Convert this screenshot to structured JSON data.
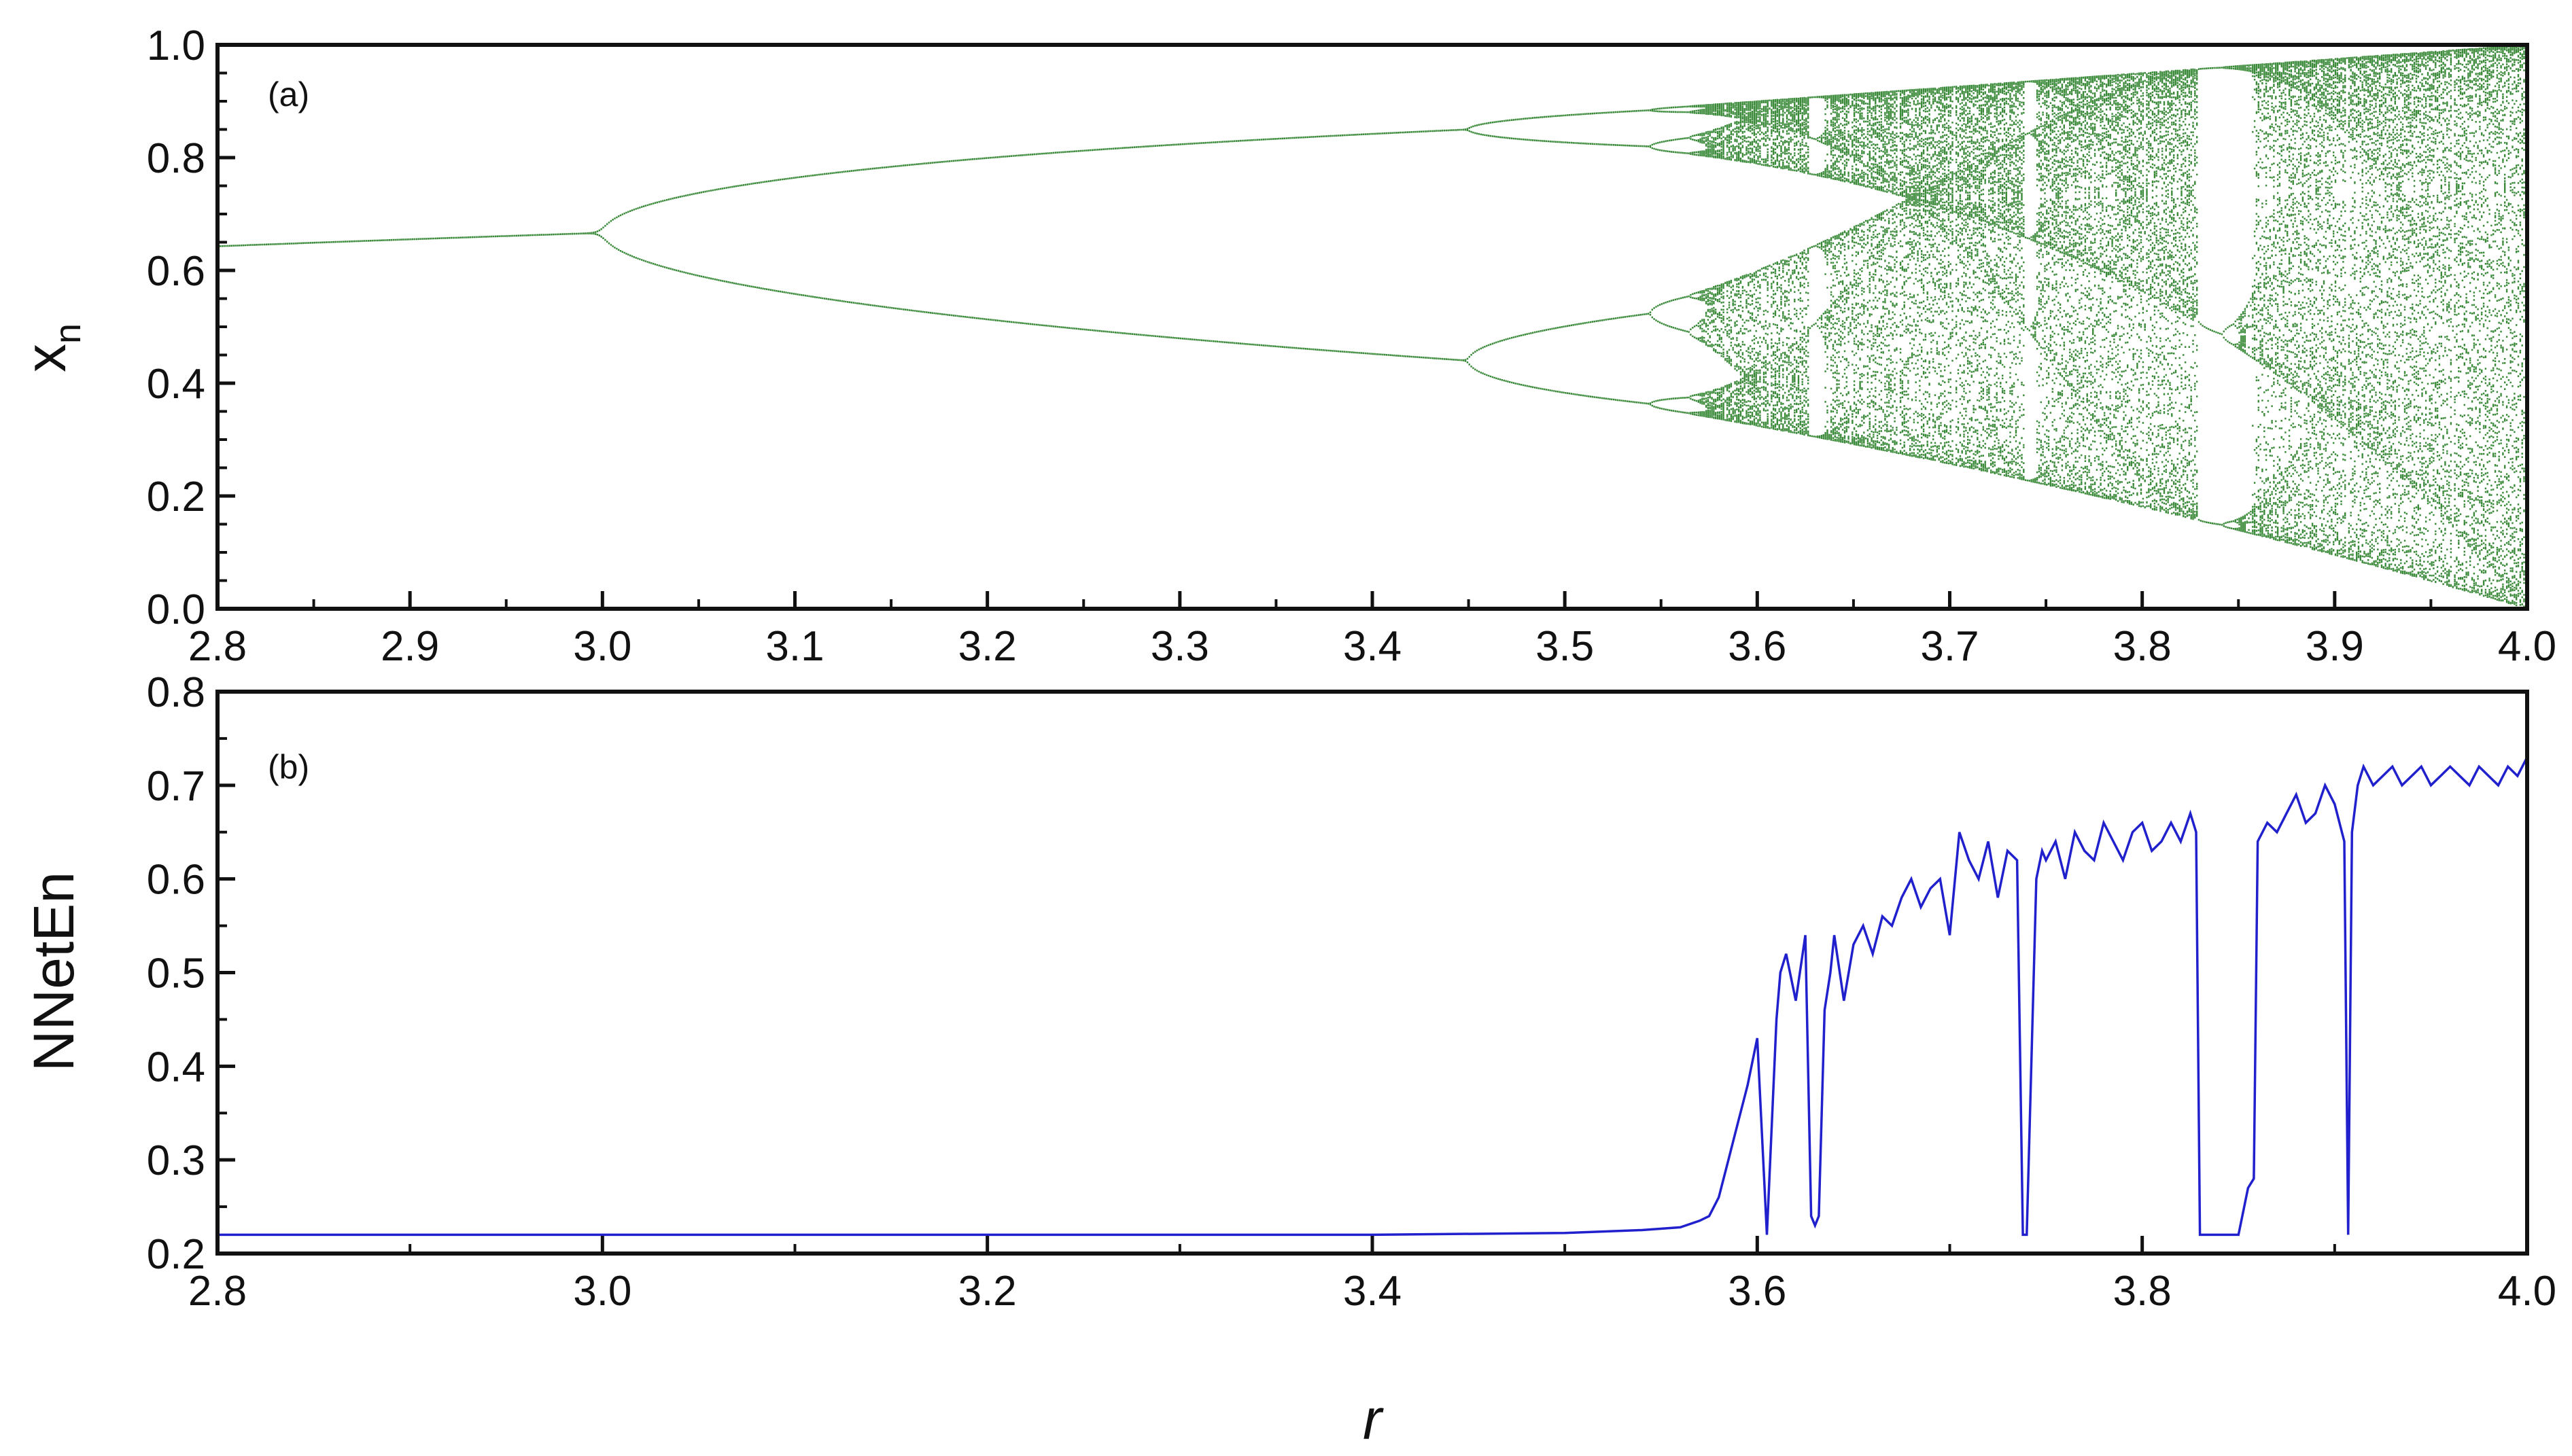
{
  "chart_data": [
    {
      "type": "scatter",
      "panel_label": "(a)",
      "ylabel": "x",
      "ylabel_subscript": "n",
      "xlim": [
        2.8,
        4.0
      ],
      "ylim": [
        0.0,
        1.0
      ],
      "x_ticks": [
        2.8,
        2.9,
        3.0,
        3.1,
        3.2,
        3.3,
        3.4,
        3.5,
        3.6,
        3.7,
        3.8,
        3.9,
        4.0
      ],
      "x_tick_labels": [
        "2.8",
        "2.9",
        "3.0",
        "3.1",
        "3.2",
        "3.3",
        "3.4",
        "3.5",
        "3.6",
        "3.7",
        "3.8",
        "3.9",
        "4.0"
      ],
      "y_ticks": [
        0.0,
        0.2,
        0.4,
        0.6,
        0.8,
        1.0
      ],
      "y_tick_labels": [
        "0.0",
        "0.2",
        "0.4",
        "0.6",
        "0.8",
        "1.0"
      ],
      "series": [
        {
          "color": "#3a8a3a",
          "map": "x_{n+1} = r x_n (1 - x_n)",
          "description": "logistic-map bifurcation diagram, attractor points for each r"
        }
      ]
    },
    {
      "type": "line",
      "panel_label": "(b)",
      "xlabel": "r",
      "ylabel": "NNetEn",
      "xlim": [
        2.8,
        4.0
      ],
      "ylim": [
        0.2,
        0.8
      ],
      "x_ticks": [
        2.8,
        3.0,
        3.2,
        3.4,
        3.6,
        3.8,
        4.0
      ],
      "x_tick_labels": [
        "2.8",
        "3.0",
        "3.2",
        "3.4",
        "3.6",
        "3.8",
        "4.0"
      ],
      "y_ticks": [
        0.2,
        0.3,
        0.4,
        0.5,
        0.6,
        0.7,
        0.8
      ],
      "y_tick_labels": [
        "0.2",
        "0.3",
        "0.4",
        "0.5",
        "0.6",
        "0.7",
        "0.8"
      ],
      "series": [
        {
          "color": "#2020cc",
          "x": [
            2.8,
            3.0,
            3.2,
            3.4,
            3.5,
            3.54,
            3.56,
            3.57,
            3.575,
            3.58,
            3.585,
            3.59,
            3.595,
            3.6,
            3.605,
            3.61,
            3.612,
            3.615,
            3.62,
            3.625,
            3.628,
            3.63,
            3.632,
            3.635,
            3.638,
            3.64,
            3.645,
            3.65,
            3.655,
            3.66,
            3.665,
            3.67,
            3.675,
            3.68,
            3.685,
            3.69,
            3.695,
            3.7,
            3.705,
            3.71,
            3.715,
            3.72,
            3.725,
            3.73,
            3.735,
            3.738,
            3.74,
            3.745,
            3.748,
            3.75,
            3.755,
            3.76,
            3.765,
            3.77,
            3.775,
            3.78,
            3.785,
            3.79,
            3.795,
            3.8,
            3.805,
            3.81,
            3.815,
            3.82,
            3.825,
            3.828,
            3.83,
            3.84,
            3.85,
            3.855,
            3.858,
            3.86,
            3.865,
            3.87,
            3.875,
            3.88,
            3.885,
            3.89,
            3.895,
            3.9,
            3.905,
            3.907,
            3.909,
            3.912,
            3.915,
            3.92,
            3.925,
            3.93,
            3.935,
            3.94,
            3.945,
            3.95,
            3.955,
            3.96,
            3.965,
            3.97,
            3.975,
            3.98,
            3.985,
            3.99,
            3.995,
            4.0
          ],
          "y": [
            0.22,
            0.22,
            0.22,
            0.22,
            0.222,
            0.225,
            0.228,
            0.235,
            0.24,
            0.26,
            0.3,
            0.34,
            0.38,
            0.43,
            0.22,
            0.45,
            0.5,
            0.52,
            0.47,
            0.54,
            0.24,
            0.23,
            0.24,
            0.46,
            0.5,
            0.54,
            0.47,
            0.53,
            0.55,
            0.52,
            0.56,
            0.55,
            0.58,
            0.6,
            0.57,
            0.59,
            0.6,
            0.54,
            0.65,
            0.62,
            0.6,
            0.64,
            0.58,
            0.63,
            0.62,
            0.22,
            0.22,
            0.6,
            0.63,
            0.62,
            0.64,
            0.6,
            0.65,
            0.63,
            0.62,
            0.66,
            0.64,
            0.62,
            0.65,
            0.66,
            0.63,
            0.64,
            0.66,
            0.64,
            0.67,
            0.65,
            0.22,
            0.22,
            0.22,
            0.27,
            0.28,
            0.64,
            0.66,
            0.65,
            0.67,
            0.69,
            0.66,
            0.67,
            0.7,
            0.68,
            0.64,
            0.22,
            0.65,
            0.7,
            0.72,
            0.7,
            0.71,
            0.72,
            0.7,
            0.71,
            0.72,
            0.7,
            0.71,
            0.72,
            0.71,
            0.7,
            0.72,
            0.71,
            0.7,
            0.72,
            0.71,
            0.73
          ]
        }
      ]
    }
  ]
}
